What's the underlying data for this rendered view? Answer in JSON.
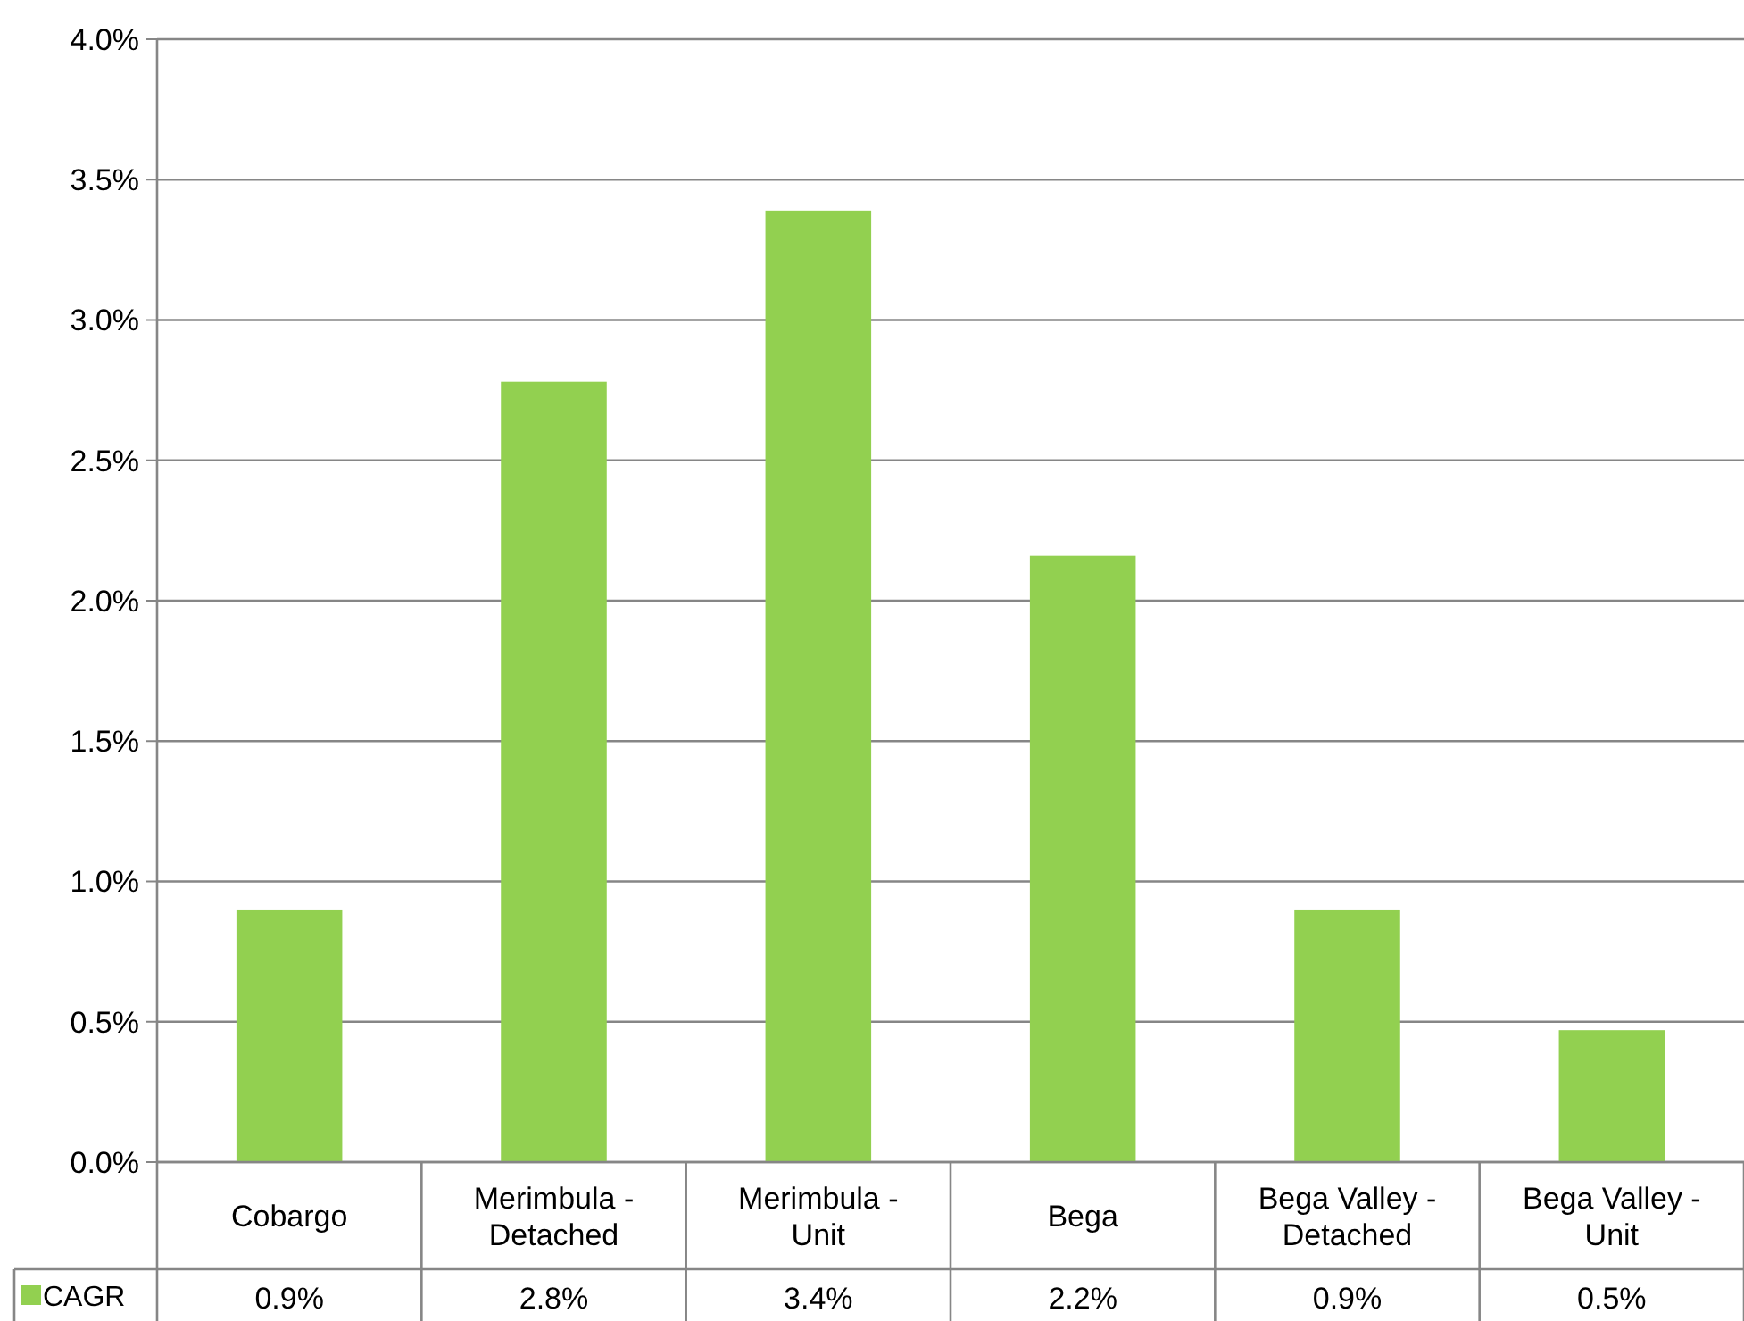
{
  "chart_data": {
    "type": "bar",
    "categories": [
      "Cobargo",
      "Merimbula - Detached",
      "Merimbula - Unit",
      "Bega",
      "Bega Valley - Detached",
      "Bega Valley - Unit"
    ],
    "series": [
      {
        "name": "CAGR",
        "color": "#92d050",
        "values": [
          0.9,
          2.78,
          3.39,
          2.16,
          0.9,
          0.47
        ],
        "value_labels": [
          "0.9%",
          "2.8%",
          "3.4%",
          "2.2%",
          "0.9%",
          "0.5%"
        ]
      }
    ],
    "ylim": [
      0,
      4
    ],
    "yticks": [
      {
        "value": 0,
        "label": "0.0%"
      },
      {
        "value": 0.5,
        "label": "0.5%"
      },
      {
        "value": 1,
        "label": "1.0%"
      },
      {
        "value": 1.5,
        "label": "1.5%"
      },
      {
        "value": 2,
        "label": "2.0%"
      },
      {
        "value": 2.5,
        "label": "2.5%"
      },
      {
        "value": 3,
        "label": "3.0%"
      },
      {
        "value": 3.5,
        "label": "3.5%"
      },
      {
        "value": 4,
        "label": "4.0%"
      }
    ],
    "grid": "y",
    "legend": "bottom"
  }
}
